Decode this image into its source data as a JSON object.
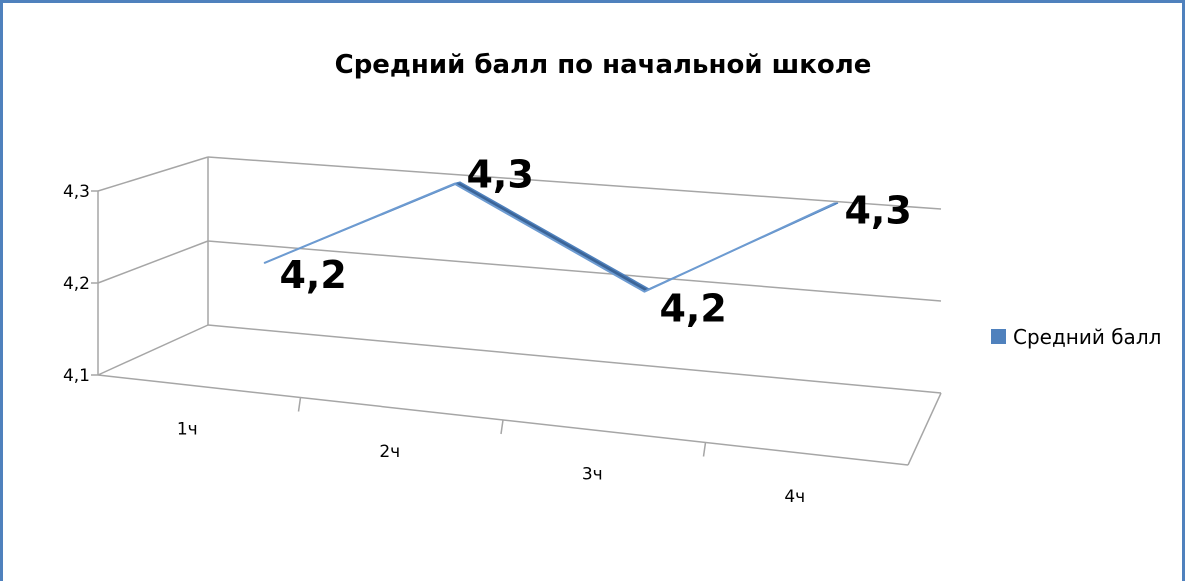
{
  "chart_data": {
    "type": "line",
    "title": "Средний балл по начальной школе",
    "categories": [
      "1ч",
      "2ч",
      "3ч",
      "4ч"
    ],
    "series": [
      {
        "name": "Средний балл",
        "values": [
          4.2,
          4.3,
          4.2,
          4.3
        ],
        "labels": [
          "4,2",
          "4,3",
          "4,2",
          "4,3"
        ],
        "color": "#4f81bd"
      }
    ],
    "ylim": [
      4.1,
      4.3
    ],
    "yticks": [
      4.1,
      4.2,
      4.3
    ],
    "ytick_labels": [
      "4,1",
      "4,2",
      "4,3"
    ],
    "grid": true,
    "three_d": true,
    "legend_position": "right"
  },
  "colors": {
    "series_front": "#4f81bd",
    "series_dark": "#3b6497",
    "frame_border": "#4f81bd",
    "grid": "#a6a6a6"
  }
}
